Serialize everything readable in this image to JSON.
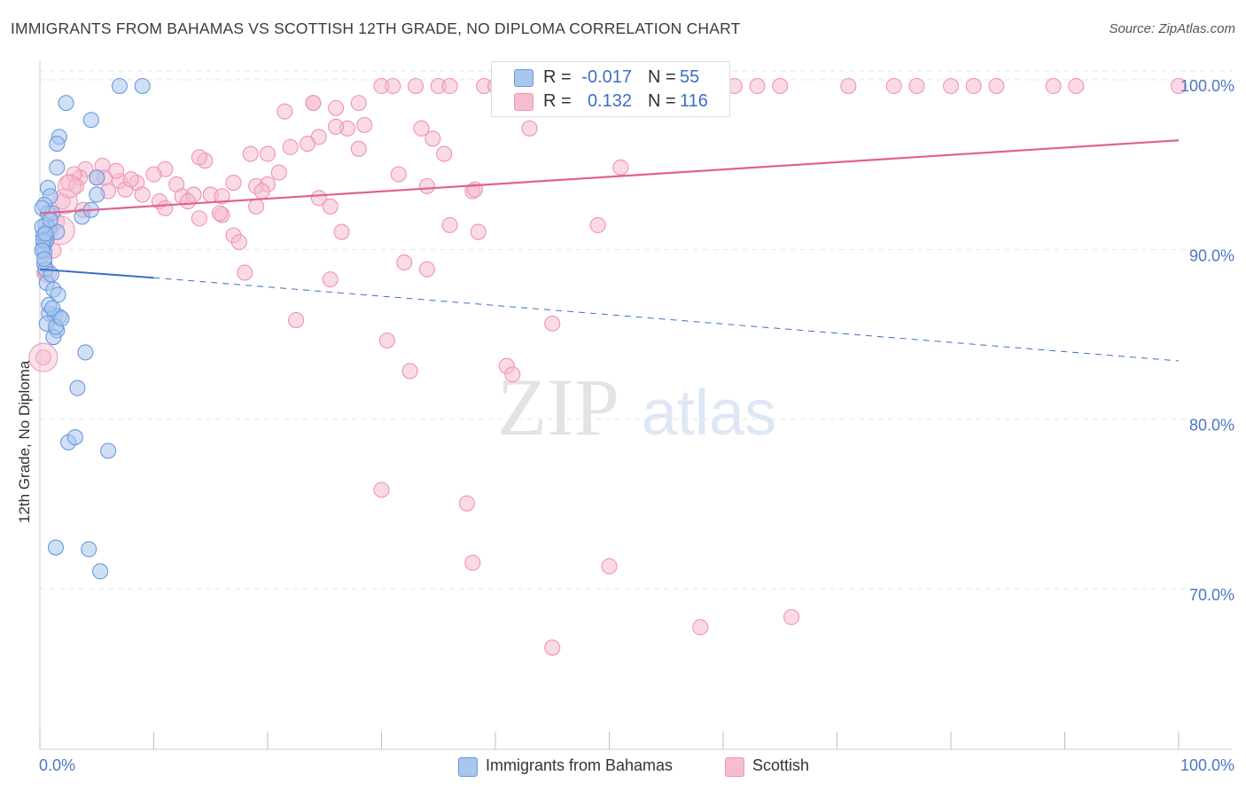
{
  "title": "IMMIGRANTS FROM BAHAMAS VS SCOTTISH 12TH GRADE, NO DIPLOMA CORRELATION CHART",
  "source": "Source: ZipAtlas.com",
  "watermark": {
    "zip": "ZIP",
    "atlas": "atlas"
  },
  "legend": {
    "r_label": "R =",
    "n_label": "N =",
    "rows": [
      {
        "r_value": "-0.017",
        "n_value": "55"
      },
      {
        "r_value": "0.132",
        "n_value": "116"
      }
    ]
  },
  "colors": {
    "blue_fill": "#a8c6ee",
    "blue_stroke": "#6a98dc",
    "blue_line": "#3a6fc8",
    "pink_fill": "#f6bcd0",
    "pink_stroke": "#ee93b4",
    "pink_line": "#e0628f",
    "tick_label": "#4a78c2",
    "grid": "#e6e6e6"
  },
  "chart_data": {
    "type": "scatter",
    "title": "IMMIGRANTS FROM BAHAMAS VS SCOTTISH 12TH GRADE, NO DIPLOMA CORRELATION CHART",
    "xlabel": "",
    "ylabel": "12th Grade, No Diploma",
    "x_tick_labels": [
      "0.0%",
      "100.0%"
    ],
    "y_tick_labels": [
      "100.0%",
      "90.0%",
      "80.0%",
      "70.0%"
    ],
    "y_ticks": [
      100,
      90,
      80,
      70
    ],
    "xlim": [
      0,
      100
    ],
    "ylim": [
      60,
      101
    ],
    "grid": true,
    "legend_position": "top-center",
    "series": [
      {
        "name": "Immigrants from Bahamas",
        "color": "#a8c6ee",
        "r": -0.017,
        "n": 55,
        "trend": {
          "x": [
            0,
            10
          ],
          "y": [
            89.2,
            88.7
          ],
          "dashed_extension_to": [
            100,
            83.8
          ]
        },
        "points": [
          [
            7,
            100
          ],
          [
            9,
            100
          ],
          [
            2.3,
            99
          ],
          [
            4.5,
            98
          ],
          [
            1.7,
            97
          ],
          [
            1.5,
            96.6
          ],
          [
            1.5,
            95.2
          ],
          [
            5,
            94.6
          ],
          [
            0.7,
            94
          ],
          [
            0.9,
            93.5
          ],
          [
            5,
            93.6
          ],
          [
            0.4,
            93
          ],
          [
            0.7,
            92.5
          ],
          [
            1.1,
            92.5
          ],
          [
            3.7,
            92.3
          ],
          [
            4.5,
            92.7
          ],
          [
            0.5,
            91.8
          ],
          [
            0.8,
            91.6
          ],
          [
            1.5,
            91.4
          ],
          [
            0.3,
            91.2
          ],
          [
            0.6,
            91
          ],
          [
            0.5,
            90.8
          ],
          [
            0.3,
            90.5
          ],
          [
            0.4,
            90.2
          ],
          [
            0.4,
            89.5
          ],
          [
            0.5,
            89.2
          ],
          [
            0.6,
            88.4
          ],
          [
            1.2,
            88
          ],
          [
            1.6,
            87.7
          ],
          [
            0.8,
            86.6
          ],
          [
            1.3,
            86.5
          ],
          [
            1.7,
            86.4
          ],
          [
            0.6,
            86
          ],
          [
            1.5,
            85.6
          ],
          [
            1.2,
            85.2
          ],
          [
            4,
            84.3
          ],
          [
            3.3,
            82.2
          ],
          [
            2.5,
            79
          ],
          [
            3.1,
            79.3
          ],
          [
            6,
            78.5
          ],
          [
            1.4,
            72.8
          ],
          [
            4.3,
            72.7
          ],
          [
            5.3,
            71.4
          ],
          [
            0.2,
            92.8
          ],
          [
            0.2,
            91.7
          ],
          [
            0.3,
            90.9
          ],
          [
            0.2,
            90.3
          ],
          [
            1,
            88.9
          ],
          [
            0.8,
            87.1
          ],
          [
            1.4,
            85.8
          ],
          [
            0.5,
            91.3
          ],
          [
            0.9,
            92.1
          ],
          [
            0.4,
            89.8
          ],
          [
            1.1,
            86.9
          ],
          [
            1.9,
            86.3
          ]
        ]
      },
      {
        "name": "Scottish",
        "color": "#f6bcd0",
        "r": 0.132,
        "n": 116,
        "trend": {
          "x": [
            0,
            100
          ],
          "y": [
            92.5,
            96.8
          ]
        },
        "points": [
          [
            30,
            100
          ],
          [
            31,
            100
          ],
          [
            33,
            100
          ],
          [
            35,
            100
          ],
          [
            36,
            100
          ],
          [
            39,
            100
          ],
          [
            40,
            100
          ],
          [
            45,
            100
          ],
          [
            47,
            100
          ],
          [
            50,
            100
          ],
          [
            52,
            100
          ],
          [
            55,
            100
          ],
          [
            58,
            100
          ],
          [
            61,
            100
          ],
          [
            63,
            100
          ],
          [
            65,
            100
          ],
          [
            71,
            100
          ],
          [
            75,
            100
          ],
          [
            77,
            100
          ],
          [
            80,
            100
          ],
          [
            82,
            100
          ],
          [
            84,
            100
          ],
          [
            89,
            100
          ],
          [
            91,
            100
          ],
          [
            100,
            100
          ],
          [
            33.5,
            97.5
          ],
          [
            43,
            97.5
          ],
          [
            21.5,
            98.5
          ],
          [
            24,
            99
          ],
          [
            26,
            98.7
          ],
          [
            28,
            99
          ],
          [
            28.5,
            97.7
          ],
          [
            27,
            97.5
          ],
          [
            24.5,
            97
          ],
          [
            23.5,
            96.6
          ],
          [
            34.5,
            96.9
          ],
          [
            22,
            96.4
          ],
          [
            35.5,
            96
          ],
          [
            28,
            96.3
          ],
          [
            18.5,
            96
          ],
          [
            20,
            96
          ],
          [
            14.5,
            95.6
          ],
          [
            14,
            95.8
          ],
          [
            11,
            95.1
          ],
          [
            5.5,
            95.3
          ],
          [
            5,
            94.6
          ],
          [
            5.7,
            94.6
          ],
          [
            7,
            94.4
          ],
          [
            8.5,
            94.3
          ],
          [
            4,
            95.1
          ],
          [
            6.7,
            95
          ],
          [
            3.5,
            94.6
          ],
          [
            3,
            94.8
          ],
          [
            2.5,
            94.3
          ],
          [
            12,
            94.2
          ],
          [
            17,
            94.3
          ],
          [
            19,
            94.1
          ],
          [
            20,
            94.2
          ],
          [
            21,
            94.9
          ],
          [
            31.5,
            94.8
          ],
          [
            34,
            94.1
          ],
          [
            51,
            95.2
          ],
          [
            7.5,
            93.9
          ],
          [
            9,
            93.6
          ],
          [
            12.5,
            93.5
          ],
          [
            13.5,
            93.6
          ],
          [
            15,
            93.6
          ],
          [
            10.5,
            93.2
          ],
          [
            13,
            93.2
          ],
          [
            16,
            93.5
          ],
          [
            11,
            92.8
          ],
          [
            19,
            92.9
          ],
          [
            24.5,
            93.4
          ],
          [
            25.5,
            92.9
          ],
          [
            38,
            93.8
          ],
          [
            14,
            92.2
          ],
          [
            16,
            92.4
          ],
          [
            17,
            91.2
          ],
          [
            26.5,
            91.4
          ],
          [
            36,
            91.8
          ],
          [
            38.5,
            91.4
          ],
          [
            49,
            91.8
          ],
          [
            17.5,
            90.8
          ],
          [
            32,
            89.6
          ],
          [
            34,
            89.2
          ],
          [
            18,
            89
          ],
          [
            25.5,
            88.6
          ],
          [
            0.5,
            89
          ],
          [
            22.5,
            86.2
          ],
          [
            45,
            86
          ],
          [
            30.5,
            85
          ],
          [
            41,
            83.5
          ],
          [
            41.5,
            83
          ],
          [
            32.5,
            83.2
          ],
          [
            30,
            76.2
          ],
          [
            37.5,
            75.4
          ],
          [
            38,
            71.9
          ],
          [
            50,
            71.7
          ],
          [
            58,
            68.1
          ],
          [
            66,
            68.7
          ],
          [
            45,
            66.9
          ],
          [
            0.3,
            84
          ],
          [
            1,
            91.5
          ],
          [
            2,
            93.2
          ],
          [
            3.2,
            94.1
          ],
          [
            1.5,
            92
          ],
          [
            24,
            99
          ],
          [
            42,
            100
          ],
          [
            59,
            100
          ],
          [
            26,
            97.6
          ],
          [
            19.5,
            93.8
          ],
          [
            8,
            94.5
          ],
          [
            6,
            93.8
          ],
          [
            10,
            94.8
          ],
          [
            15.8,
            92.5
          ],
          [
            38.2,
            93.9
          ],
          [
            1.2,
            90.3
          ],
          [
            3.8,
            92.7
          ]
        ]
      }
    ]
  }
}
